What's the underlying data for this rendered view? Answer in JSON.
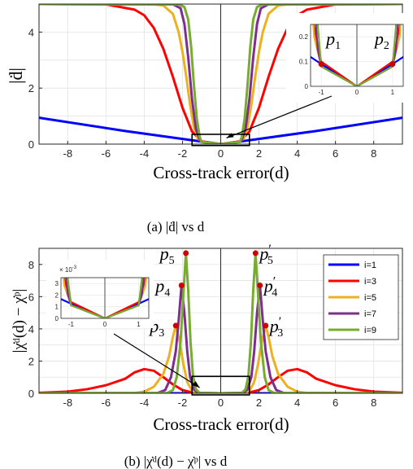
{
  "chart_data": [
    {
      "type": "line",
      "caption": "(a) |ḋ| vs d",
      "xlabel": "Cross-track error(d)",
      "ylabel": "|ḋ|",
      "xlim": [
        -9.5,
        9.5
      ],
      "ylim": [
        0,
        5
      ],
      "grid": true,
      "xticks": [
        "-8",
        "-6",
        "-4",
        "-2",
        "0",
        "2",
        "4",
        "6",
        "8"
      ],
      "yticks": [
        "0",
        "2",
        "4"
      ],
      "series": [
        {
          "color": "#0000ff",
          "values": [
            [
              -9.5,
              0.94
            ],
            [
              -5,
              0.47
            ],
            [
              -1,
              0.09
            ],
            [
              0,
              0
            ],
            [
              1,
              0.09
            ],
            [
              5,
              0.47
            ],
            [
              9.5,
              0.94
            ]
          ]
        },
        {
          "color": "#ff0000",
          "values": [
            [
              -9.5,
              5.0
            ],
            [
              -6,
              4.99
            ],
            [
              -4.5,
              4.8
            ],
            [
              -4,
              4.6
            ],
            [
              -3.5,
              4.15
            ],
            [
              -3,
              3.4
            ],
            [
              -2.5,
              2.4
            ],
            [
              -2,
              1.3
            ],
            [
              -1.5,
              0.45
            ],
            [
              -1,
              0.1
            ],
            [
              0,
              0
            ],
            [
              1,
              0.1
            ],
            [
              1.5,
              0.45
            ],
            [
              2,
              1.3
            ],
            [
              2.5,
              2.4
            ],
            [
              3,
              3.4
            ],
            [
              3.5,
              4.15
            ],
            [
              4,
              4.6
            ],
            [
              4.5,
              4.8
            ],
            [
              6,
              4.99
            ],
            [
              9.5,
              5.0
            ]
          ]
        },
        {
          "color": "#edb120",
          "values": [
            [
              -9.5,
              5.0
            ],
            [
              -3.5,
              4.99
            ],
            [
              -3,
              4.95
            ],
            [
              -2.5,
              4.65
            ],
            [
              -2.2,
              4.0
            ],
            [
              -2,
              3.3
            ],
            [
              -1.8,
              2.4
            ],
            [
              -1.6,
              1.4
            ],
            [
              -1.4,
              0.6
            ],
            [
              -1.2,
              0.2
            ],
            [
              -1,
              0.08
            ],
            [
              0,
              0
            ],
            [
              1,
              0.08
            ],
            [
              1.2,
              0.2
            ],
            [
              1.4,
              0.6
            ],
            [
              1.6,
              1.4
            ],
            [
              1.8,
              2.4
            ],
            [
              2,
              3.3
            ],
            [
              2.2,
              4.0
            ],
            [
              2.5,
              4.65
            ],
            [
              3,
              4.95
            ],
            [
              3.5,
              4.99
            ],
            [
              9.5,
              5.0
            ]
          ]
        },
        {
          "color": "#7e2f8e",
          "values": [
            [
              -9.5,
              5.0
            ],
            [
              -2.5,
              4.99
            ],
            [
              -2.1,
              4.85
            ],
            [
              -1.9,
              4.3
            ],
            [
              -1.7,
              3.1
            ],
            [
              -1.5,
              1.6
            ],
            [
              -1.3,
              0.55
            ],
            [
              -1.1,
              0.15
            ],
            [
              -1,
              0.08
            ],
            [
              0,
              0
            ],
            [
              1,
              0.08
            ],
            [
              1.1,
              0.15
            ],
            [
              1.3,
              0.55
            ],
            [
              1.5,
              1.6
            ],
            [
              1.7,
              3.1
            ],
            [
              1.9,
              4.3
            ],
            [
              2.1,
              4.85
            ],
            [
              2.5,
              4.99
            ],
            [
              9.5,
              5.0
            ]
          ]
        },
        {
          "color": "#77ac30",
          "values": [
            [
              -9.5,
              5.0
            ],
            [
              -2.2,
              4.99
            ],
            [
              -1.9,
              4.9
            ],
            [
              -1.7,
              4.45
            ],
            [
              -1.55,
              3.5
            ],
            [
              -1.4,
              2.1
            ],
            [
              -1.25,
              0.9
            ],
            [
              -1.1,
              0.25
            ],
            [
              -1,
              0.08
            ],
            [
              0,
              0
            ],
            [
              1,
              0.08
            ],
            [
              1.1,
              0.25
            ],
            [
              1.25,
              0.9
            ],
            [
              1.4,
              2.1
            ],
            [
              1.55,
              3.5
            ],
            [
              1.7,
              4.45
            ],
            [
              1.9,
              4.9
            ],
            [
              2.2,
              4.99
            ],
            [
              9.5,
              5.0
            ]
          ]
        }
      ],
      "inset": {
        "xlim": [
          -1.3,
          1.3
        ],
        "ylim": [
          0,
          0.25
        ],
        "xticks": [
          "-1",
          "0",
          "1"
        ],
        "yticks": [
          "0",
          "0.1",
          "0.2"
        ],
        "points": [
          {
            "label": "p",
            "sub": "1",
            "x": -1,
            "y": 0.09
          },
          {
            "label": "p",
            "sub": "2",
            "x": 1,
            "y": 0.09
          }
        ]
      }
    },
    {
      "type": "line",
      "caption": "(b) |χ̇ᵈ(d) − χ̇ᵖ| vs d",
      "xlabel": "Cross-track error(d)",
      "ylabel": "|χ̇ᵈ(d) − χ̇ᵖ|",
      "xlim": [
        -9.5,
        9.5
      ],
      "ylim": [
        0,
        9
      ],
      "grid": true,
      "xticks": [
        "-8",
        "-6",
        "-4",
        "-2",
        "0",
        "2",
        "4",
        "6",
        "8"
      ],
      "yticks": [
        "0",
        "2",
        "4",
        "6",
        "8"
      ],
      "legend": {
        "position": "top-right",
        "entries": [
          "i=1",
          "i=3",
          "i=5",
          "i=7",
          "i=9"
        ]
      },
      "series": [
        {
          "name": "i=1",
          "color": "#0000ff",
          "values": [
            [
              -9.5,
              0
            ],
            [
              9.5,
              0
            ]
          ]
        },
        {
          "name": "i=3",
          "color": "#ff0000",
          "values": [
            [
              -9.5,
              0.03
            ],
            [
              -8,
              0.1
            ],
            [
              -7,
              0.25
            ],
            [
              -6,
              0.5
            ],
            [
              -5,
              0.9
            ],
            [
              -4.5,
              1.3
            ],
            [
              -4,
              1.5
            ],
            [
              -3.5,
              1.4
            ],
            [
              -3,
              1.0
            ],
            [
              -2.5,
              0.55
            ],
            [
              -2,
              0.2
            ],
            [
              -1.5,
              0.05
            ],
            [
              -1,
              0.01
            ],
            [
              0,
              0
            ],
            [
              1,
              0.01
            ],
            [
              1.5,
              0.05
            ],
            [
              2,
              0.2
            ],
            [
              2.5,
              0.55
            ],
            [
              3,
              1.0
            ],
            [
              3.5,
              1.4
            ],
            [
              4,
              1.5
            ],
            [
              4.5,
              1.3
            ],
            [
              5,
              0.9
            ],
            [
              6,
              0.5
            ],
            [
              7,
              0.25
            ],
            [
              8,
              0.1
            ],
            [
              9.5,
              0.03
            ]
          ]
        },
        {
          "name": "i=5",
          "color": "#edb120",
          "values": [
            [
              -9.5,
              0
            ],
            [
              -4.5,
              0.02
            ],
            [
              -4,
              0.1
            ],
            [
              -3.5,
              0.4
            ],
            [
              -3,
              1.2
            ],
            [
              -2.7,
              2.3
            ],
            [
              -2.5,
              3.5
            ],
            [
              -2.35,
              4.2
            ],
            [
              -2.15,
              3.2
            ],
            [
              -1.95,
              1.8
            ],
            [
              -1.75,
              0.7
            ],
            [
              -1.5,
              0.15
            ],
            [
              -1.2,
              0.02
            ],
            [
              0,
              0
            ],
            [
              1.2,
              0.02
            ],
            [
              1.5,
              0.15
            ],
            [
              1.75,
              0.7
            ],
            [
              1.95,
              1.8
            ],
            [
              2.15,
              3.2
            ],
            [
              2.35,
              4.2
            ],
            [
              2.5,
              3.5
            ],
            [
              2.7,
              2.3
            ],
            [
              3,
              1.2
            ],
            [
              3.5,
              0.4
            ],
            [
              4,
              0.1
            ],
            [
              4.5,
              0.02
            ],
            [
              9.5,
              0
            ]
          ]
        },
        {
          "name": "i=7",
          "color": "#7e2f8e",
          "values": [
            [
              -9.5,
              0
            ],
            [
              -3.3,
              0.02
            ],
            [
              -2.9,
              0.2
            ],
            [
              -2.6,
              1.0
            ],
            [
              -2.35,
              2.6
            ],
            [
              -2.2,
              4.5
            ],
            [
              -2.05,
              6.7
            ],
            [
              -1.9,
              5.0
            ],
            [
              -1.75,
              2.6
            ],
            [
              -1.6,
              1.0
            ],
            [
              -1.4,
              0.25
            ],
            [
              -1.2,
              0.03
            ],
            [
              0,
              0
            ],
            [
              1.2,
              0.03
            ],
            [
              1.4,
              0.25
            ],
            [
              1.6,
              1.0
            ],
            [
              1.75,
              2.6
            ],
            [
              1.9,
              5.0
            ],
            [
              2.05,
              6.7
            ],
            [
              2.2,
              4.5
            ],
            [
              2.35,
              2.6
            ],
            [
              2.6,
              1.0
            ],
            [
              2.9,
              0.2
            ],
            [
              3.3,
              0.02
            ],
            [
              9.5,
              0
            ]
          ]
        },
        {
          "name": "i=9",
          "color": "#77ac30",
          "values": [
            [
              -9.5,
              0
            ],
            [
              -2.8,
              0.02
            ],
            [
              -2.5,
              0.2
            ],
            [
              -2.3,
              1.0
            ],
            [
              -2.1,
              3.2
            ],
            [
              -1.95,
              6.2
            ],
            [
              -1.82,
              8.7
            ],
            [
              -1.7,
              6.4
            ],
            [
              -1.58,
              3.2
            ],
            [
              -1.45,
              1.1
            ],
            [
              -1.3,
              0.25
            ],
            [
              -1.1,
              0.02
            ],
            [
              0,
              0
            ],
            [
              1.1,
              0.02
            ],
            [
              1.3,
              0.25
            ],
            [
              1.45,
              1.1
            ],
            [
              1.58,
              3.2
            ],
            [
              1.7,
              6.4
            ],
            [
              1.82,
              8.7
            ],
            [
              1.95,
              6.2
            ],
            [
              2.1,
              3.2
            ],
            [
              2.3,
              1.0
            ],
            [
              2.5,
              0.2
            ],
            [
              2.8,
              0.02
            ],
            [
              9.5,
              0
            ]
          ]
        }
      ],
      "points": [
        {
          "label": "p",
          "sub": "5",
          "prime": false,
          "x": -1.82,
          "y": 8.7
        },
        {
          "label": "p",
          "sub": "4",
          "prime": false,
          "x": -2.05,
          "y": 6.7
        },
        {
          "label": "p",
          "sub": "3",
          "prime": false,
          "x": -2.35,
          "y": 4.2
        },
        {
          "label": "p",
          "sub": "5",
          "prime": true,
          "x": 1.82,
          "y": 8.7
        },
        {
          "label": "p",
          "sub": "4",
          "prime": true,
          "x": 2.05,
          "y": 6.7
        },
        {
          "label": "p",
          "sub": "3",
          "prime": true,
          "x": 2.35,
          "y": 4.2
        }
      ],
      "inset": {
        "scale_label": "× 10",
        "scale_exp": "-3",
        "xlim": [
          -1.3,
          1.3
        ],
        "ylim": [
          0,
          3.5
        ],
        "xticks": [
          "-1",
          "0",
          "1"
        ],
        "yticks": [
          "0",
          "1",
          "2",
          "3"
        ]
      }
    }
  ]
}
